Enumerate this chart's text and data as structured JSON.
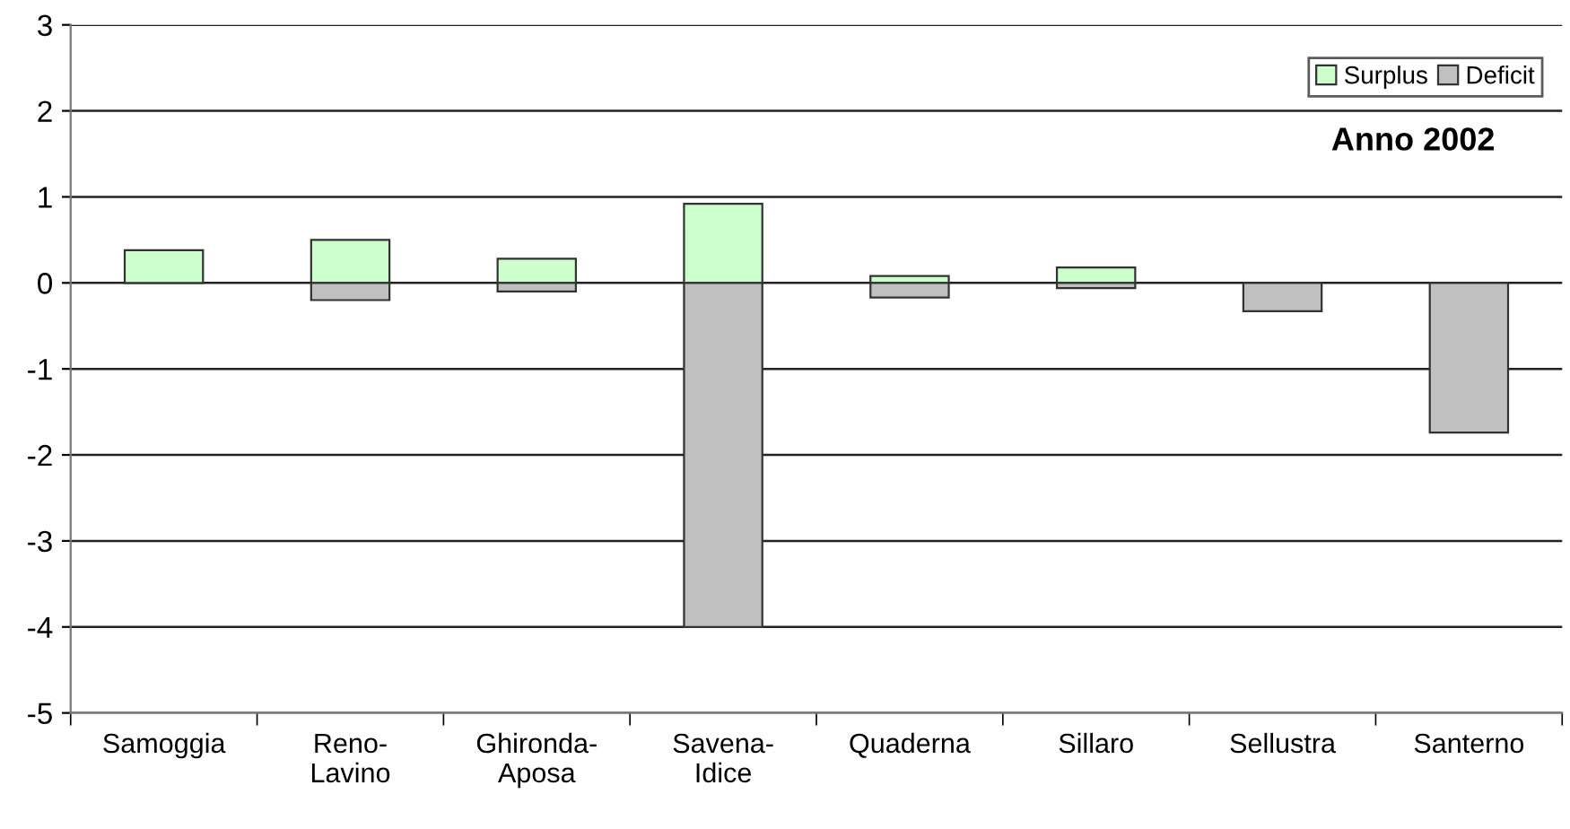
{
  "chart_data": {
    "type": "bar",
    "title": "Anno 2002",
    "stacked": true,
    "categories": [
      "Samoggia",
      "Reno-\nLavino",
      "Ghironda-\nAposa",
      "Savena-\nIdice",
      "Quaderna",
      "Sillaro",
      "Sellustra",
      "Santerno"
    ],
    "series": [
      {
        "name": "Surplus",
        "color": "#ccffcc",
        "values": [
          0.38,
          0.5,
          0.28,
          0.92,
          0.08,
          0.18,
          null,
          null
        ]
      },
      {
        "name": "Deficit",
        "color": "#c0c0c0",
        "values": [
          null,
          -0.2,
          -0.1,
          -4.0,
          -0.17,
          -0.06,
          -0.33,
          -1.74
        ]
      }
    ],
    "ylim": [
      -5,
      3
    ],
    "yticks": [
      -5,
      -4,
      -3,
      -2,
      -1,
      0,
      1,
      2,
      3
    ],
    "grid": "y",
    "legend": "top right"
  }
}
